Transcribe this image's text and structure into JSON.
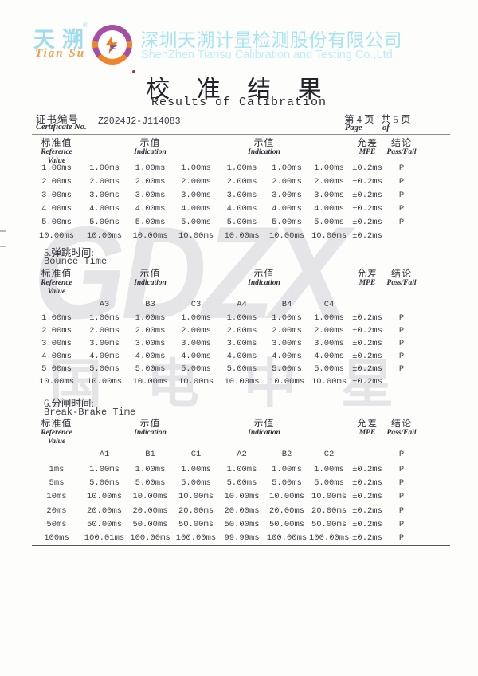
{
  "header": {
    "logo_text_cn": "天溯",
    "logo_trademark": "®",
    "logo_text_script": "Tian Su",
    "company_name_cn": "深圳天溯计量检测股份有限公司",
    "company_name_en": "ShenZhen Tiansu Calibration and Testing Co.,Ltd."
  },
  "title": {
    "cn": "校 准 结 果",
    "en": "Results of Calibration"
  },
  "certificate": {
    "label_cn": "证书编号",
    "label_en": "Certificate No.",
    "number": "Z2024J2-J114083",
    "page_cn": "第 4 页",
    "total_cn": "共 5 页",
    "page_en": "Page",
    "of_en": "of"
  },
  "columns": {
    "ref_cn": "标准值",
    "ref_en1": "Reference",
    "ref_en2": "Value",
    "ind_cn": "示值",
    "ind_en": "Indication",
    "mpe_cn": "允差",
    "mpe_en": "MPE",
    "pf_cn": "结论",
    "pf_en": "Pass/Fail"
  },
  "table1": {
    "rows": [
      [
        "1.00ms",
        "1.00ms",
        "1.00ms",
        "1.00ms",
        "1.00ms",
        "1.00ms",
        "1.00ms",
        "±0.2ms",
        "P"
      ],
      [
        "2.00ms",
        "2.00ms",
        "2.00ms",
        "2.00ms",
        "2.00ms",
        "2.00ms",
        "2.00ms",
        "±0.2ms",
        "P"
      ],
      [
        "3.00ms",
        "3.00ms",
        "3.00ms",
        "3.00ms",
        "3.00ms",
        "3.00ms",
        "3.00ms",
        "±0.2ms",
        "P"
      ],
      [
        "4.00ms",
        "4.00ms",
        "4.00ms",
        "4.00ms",
        "4.00ms",
        "4.00ms",
        "4.00ms",
        "±0.2ms",
        "P"
      ],
      [
        "5.00ms",
        "5.00ms",
        "5.00ms",
        "5.00ms",
        "5.00ms",
        "5.00ms",
        "5.00ms",
        "±0.2ms",
        "P"
      ],
      [
        "10.00ms",
        "10.00ms",
        "10.00ms",
        "10.00ms",
        "10.00ms",
        "10.00ms",
        "10.00ms",
        "±0.2ms",
        ""
      ]
    ]
  },
  "section5": {
    "title_cn": "5.弹跳时间:",
    "title_en": "Bounce Time",
    "subhead": [
      "",
      "A3",
      "B3",
      "C3",
      "A4",
      "B4",
      "C4",
      "",
      ""
    ],
    "rows": [
      [
        "1.00ms",
        "1.00ms",
        "1.00ms",
        "1.00ms",
        "1.00ms",
        "1.00ms",
        "1.00ms",
        "±0.2ms",
        "P"
      ],
      [
        "2.00ms",
        "2.00ms",
        "2.00ms",
        "2.00ms",
        "2.00ms",
        "2.00ms",
        "2.00ms",
        "±0.2ms",
        "P"
      ],
      [
        "3.00ms",
        "3.00ms",
        "3.00ms",
        "3.00ms",
        "3.00ms",
        "3.00ms",
        "3.00ms",
        "±0.2ms",
        "P"
      ],
      [
        "4.00ms",
        "4.00ms",
        "4.00ms",
        "4.00ms",
        "4.00ms",
        "4.00ms",
        "4.00ms",
        "±0.2ms",
        "P"
      ],
      [
        "5.00ms",
        "5.00ms",
        "5.00ms",
        "5.00ms",
        "5.00ms",
        "5.00ms",
        "5.00ms",
        "±0.2ms",
        "P"
      ],
      [
        "10.00ms",
        "10.00ms",
        "10.00ms",
        "10.00ms",
        "10.00ms",
        "10.00ms",
        "10.00ms",
        "±0.2ms",
        ""
      ]
    ]
  },
  "section6": {
    "title_cn": "6.分闸时间:",
    "title_en": "Break-Brake Time",
    "subhead": [
      "",
      "A1",
      "B1",
      "C1",
      "A2",
      "B2",
      "C2",
      "",
      "P"
    ],
    "rows": [
      [
        "1ms",
        "1.00ms",
        "1.00ms",
        "1.00ms",
        "1.00ms",
        "1.00ms",
        "1.00ms",
        "±0.2ms",
        "P"
      ],
      [
        "5ms",
        "5.00ms",
        "5.00ms",
        "5.00ms",
        "5.00ms",
        "5.00ms",
        "5.00ms",
        "±0.2ms",
        "P"
      ],
      [
        "10ms",
        "10.00ms",
        "10.00ms",
        "10.00ms",
        "10.00ms",
        "10.00ms",
        "10.00ms",
        "±0.2ms",
        "P"
      ],
      [
        "20ms",
        "20.00ms",
        "20.00ms",
        "20.00ms",
        "20.00ms",
        "20.00ms",
        "20.00ms",
        "±0.2ms",
        "P"
      ],
      [
        "50ms",
        "50.00ms",
        "50.00ms",
        "50.00ms",
        "50.00ms",
        "50.00ms",
        "50.00ms",
        "±0.2ms",
        "P"
      ],
      [
        "100ms",
        "100.01ms",
        "100.00ms",
        "100.00ms",
        "99.99ms",
        "100.00ms",
        "100.00ms",
        "±0.2ms",
        "P"
      ]
    ]
  },
  "watermark": {
    "line1": "GDZX",
    "line2": "国电中星"
  },
  "colors": {
    "brand_cyan": "#a5e4f2",
    "brand_cyan_light": "#bdeef7",
    "brand_orange": "#efa052",
    "badge_purple": "#a44fa4",
    "badge_orange": "#f08428",
    "watermark_gray": "#e5e5e8"
  }
}
